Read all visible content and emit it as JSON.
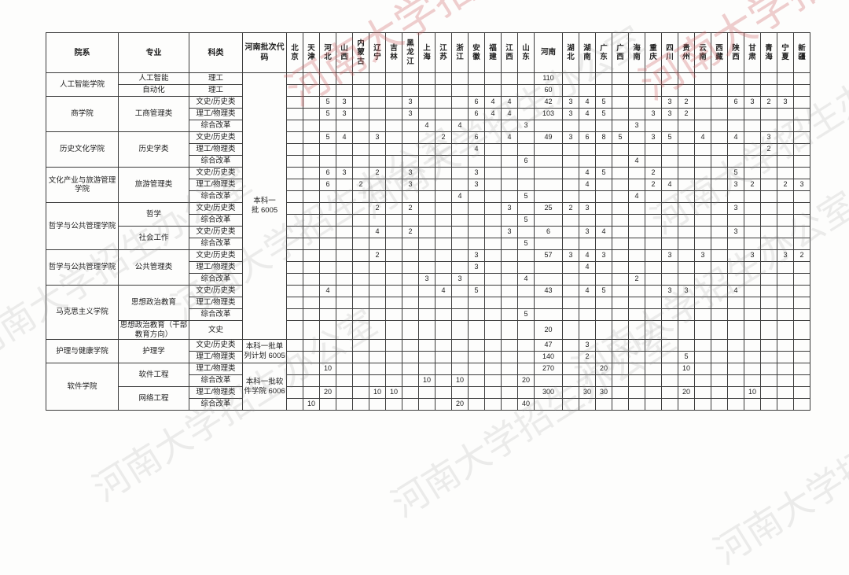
{
  "watermark": {
    "text": "河南大学招生办公室"
  },
  "table": {
    "headers": {
      "college": "院系",
      "major": "专业",
      "category": "科类",
      "batch_code": "河南批次代码"
    },
    "wide_province": "河南",
    "provinces": [
      "北京",
      "天津",
      "河北",
      "山西",
      "内蒙古",
      "辽宁",
      "吉林",
      "黑龙江",
      "上海",
      "江苏",
      "浙江",
      "安徽",
      "福建",
      "江西",
      "山东",
      "河南",
      "湖北",
      "湖南",
      "广东",
      "广西",
      "海南",
      "重庆",
      "四川",
      "贵州",
      "云南",
      "西藏",
      "陕西",
      "甘肃",
      "青海",
      "宁夏",
      "新疆"
    ],
    "batches": [
      {
        "label": "本科一批",
        "code": "6005",
        "row_span": 22
      },
      {
        "label": "本科一批单列计划",
        "code": "6005",
        "row_span": 2
      },
      {
        "label": "本科一批软件学院",
        "code": "6006",
        "row_span": 4
      }
    ],
    "colleges": [
      {
        "name": "人工智能学院",
        "majors": [
          {
            "name": "人工智能",
            "rows": [
              {
                "category": "理工",
                "values": {
                  "河南": "110"
                }
              }
            ]
          },
          {
            "name": "自动化",
            "rows": [
              {
                "category": "理工",
                "values": {
                  "河南": "60"
                }
              }
            ]
          }
        ]
      },
      {
        "name": "商学院",
        "majors": [
          {
            "name": "工商管理类",
            "rows": [
              {
                "category": "文史/历史类",
                "values": {
                  "河北": "5",
                  "山西": "3",
                  "黑龙江": "3",
                  "安徽": "6",
                  "福建": "4",
                  "江西": "4",
                  "河南": "42",
                  "湖北": "3",
                  "湖南": "4",
                  "广东": "5",
                  "四川": "3",
                  "贵州": "2",
                  "陕西": "6",
                  "甘肃": "3",
                  "青海": "2",
                  "宁夏": "3"
                }
              },
              {
                "category": "理工/物理类",
                "values": {
                  "河北": "5",
                  "山西": "3",
                  "黑龙江": "3",
                  "安徽": "6",
                  "福建": "4",
                  "江西": "4",
                  "河南": "103",
                  "湖北": "3",
                  "湖南": "4",
                  "广东": "5",
                  "重庆": "3",
                  "四川": "3",
                  "贵州": "2"
                }
              },
              {
                "category": "综合改革",
                "values": {
                  "上海": "4",
                  "浙江": "4",
                  "山东": "3",
                  "海南": "3"
                }
              }
            ]
          }
        ]
      },
      {
        "name": "历史文化学院",
        "majors": [
          {
            "name": "历史学类",
            "rows": [
              {
                "category": "文史/历史类",
                "values": {
                  "河北": "5",
                  "山西": "4",
                  "辽宁": "3",
                  "江苏": "2",
                  "安徽": "6",
                  "江西": "4",
                  "河南": "49",
                  "湖北": "3",
                  "湖南": "6",
                  "广东": "8",
                  "广西": "5",
                  "重庆": "3",
                  "四川": "5",
                  "云南": "4",
                  "陕西": "4",
                  "青海": "3"
                }
              },
              {
                "category": "理工/物理类",
                "values": {
                  "安徽": "4",
                  "青海": "2"
                }
              },
              {
                "category": "综合改革",
                "values": {
                  "山东": "6",
                  "海南": "4"
                }
              }
            ]
          }
        ]
      },
      {
        "name": "文化产业与旅游管理学院",
        "majors": [
          {
            "name": "旅游管理类",
            "rows": [
              {
                "category": "文史/历史类",
                "values": {
                  "河北": "6",
                  "山西": "3",
                  "辽宁": "2",
                  "黑龙江": "3",
                  "安徽": "3",
                  "湖南": "4",
                  "广东": "5",
                  "重庆": "2",
                  "陕西": "5"
                }
              },
              {
                "category": "理工/物理类",
                "values": {
                  "河北": "6",
                  "内蒙古": "2",
                  "黑龙江": "3",
                  "安徽": "3",
                  "湖南": "4",
                  "重庆": "2",
                  "四川": "4",
                  "陕西": "3",
                  "甘肃": "2",
                  "宁夏": "2",
                  "新疆": "3"
                }
              },
              {
                "category": "综合改革",
                "values": {
                  "浙江": "4",
                  "山东": "5",
                  "海南": "4"
                }
              }
            ]
          }
        ]
      },
      {
        "name": "哲学与公共管理学院",
        "majors": [
          {
            "name": "哲学",
            "rows": [
              {
                "category": "文史/历史类",
                "values": {
                  "辽宁": "2",
                  "黑龙江": "2",
                  "江西": "3",
                  "河南": "25",
                  "湖北": "2",
                  "湖南": "3",
                  "陕西": "3"
                }
              },
              {
                "category": "综合改革",
                "values": {
                  "山东": "5"
                }
              }
            ]
          },
          {
            "name": "社会工作",
            "rows": [
              {
                "category": "文史/历史类",
                "values": {
                  "辽宁": "4",
                  "黑龙江": "2",
                  "江西": "3",
                  "河南": "6",
                  "湖南": "3",
                  "广东": "4",
                  "陕西": "3"
                }
              },
              {
                "category": "综合改革",
                "values": {
                  "山东": "5"
                }
              }
            ]
          }
        ]
      },
      {
        "name": "哲学与公共管理学院",
        "majors": [
          {
            "name": "公共管理类",
            "rows": [
              {
                "category": "文史/历史类",
                "values": {
                  "辽宁": "2",
                  "安徽": "3",
                  "河南": "57",
                  "湖北": "3",
                  "湖南": "4",
                  "广东": "3",
                  "四川": "3",
                  "云南": "3",
                  "甘肃": "3",
                  "宁夏": "3",
                  "新疆": "2"
                }
              },
              {
                "category": "理工/物理类",
                "values": {
                  "安徽": "3",
                  "湖南": "4"
                }
              },
              {
                "category": "综合改革",
                "values": {
                  "上海": "3",
                  "浙江": "3",
                  "山东": "4",
                  "海南": "2"
                }
              }
            ]
          }
        ]
      },
      {
        "name": "马克思主义学院",
        "majors": [
          {
            "name": "思想政治教育",
            "rows": [
              {
                "category": "文史/历史类",
                "values": {
                  "河北": "4",
                  "江苏": "4",
                  "安徽": "5",
                  "河南": "43",
                  "湖南": "4",
                  "广东": "5",
                  "四川": "3",
                  "贵州": "3",
                  "陕西": "4"
                }
              },
              {
                "category": "理工/物理类",
                "values": {}
              },
              {
                "category": "综合改革",
                "values": {
                  "山东": "5"
                }
              }
            ]
          },
          {
            "name": "思想政治教育（干部教育方向）",
            "rows": [
              {
                "category": "文史",
                "values": {
                  "河南": "20"
                }
              }
            ]
          }
        ]
      },
      {
        "name": "护理与健康学院",
        "majors": [
          {
            "name": "护理学",
            "rows": [
              {
                "category": "文史/历史类",
                "values": {
                  "河南": "47",
                  "湖南": "3"
                }
              },
              {
                "category": "理工/物理类",
                "values": {
                  "河南": "140",
                  "湖南": "2",
                  "贵州": "5"
                }
              }
            ]
          }
        ]
      },
      {
        "name": "软件学院",
        "majors": [
          {
            "name": "软件工程",
            "rows": [
              {
                "category": "理工/物理类",
                "values": {
                  "河北": "10",
                  "河南": "270",
                  "广东": "20",
                  "贵州": "10"
                }
              },
              {
                "category": "综合改革",
                "values": {
                  "上海": "10",
                  "浙江": "10",
                  "山东": "20"
                }
              }
            ]
          },
          {
            "name": "网络工程",
            "rows": [
              {
                "category": "理工/物理类",
                "values": {
                  "河北": "20",
                  "辽宁": "10",
                  "吉林": "10",
                  "河南": "300",
                  "湖南": "30",
                  "广东": "30",
                  "贵州": "20",
                  "甘肃": "10"
                }
              },
              {
                "category": "综合改革",
                "values": {
                  "天津": "10",
                  "浙江": "20",
                  "山东": "40"
                }
              }
            ]
          }
        ]
      }
    ]
  }
}
